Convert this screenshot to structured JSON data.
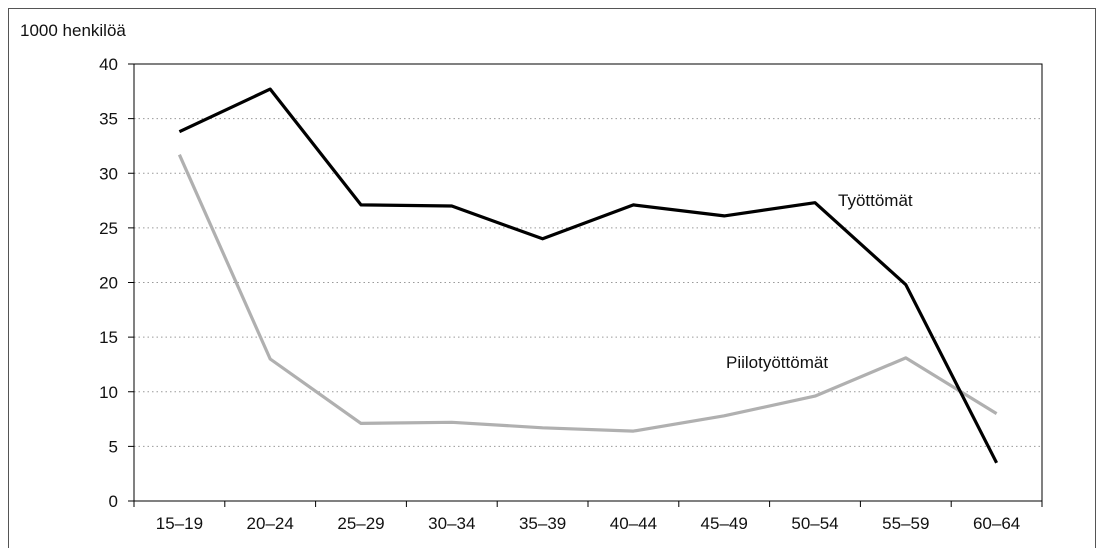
{
  "chart_data": {
    "type": "line",
    "ylabel": "1000 henkilöä",
    "categories": [
      "15–19",
      "20–24",
      "25–29",
      "30–34",
      "35–39",
      "40–44",
      "45–49",
      "50–54",
      "55–59",
      "60–64"
    ],
    "ylim": [
      0,
      40
    ],
    "yticks": [
      0,
      5,
      10,
      15,
      20,
      25,
      30,
      35,
      40
    ],
    "grid": true,
    "series": [
      {
        "name": "Työttömät",
        "color": "#000000",
        "values": [
          33.8,
          37.7,
          27.1,
          27.0,
          24.0,
          27.1,
          26.1,
          27.3,
          19.8,
          3.5
        ]
      },
      {
        "name": "Piilotyöttömät",
        "color": "#b0b0b0",
        "values": [
          31.7,
          13.0,
          7.1,
          7.2,
          6.7,
          6.4,
          7.8,
          9.6,
          13.1,
          8.0
        ]
      }
    ]
  }
}
